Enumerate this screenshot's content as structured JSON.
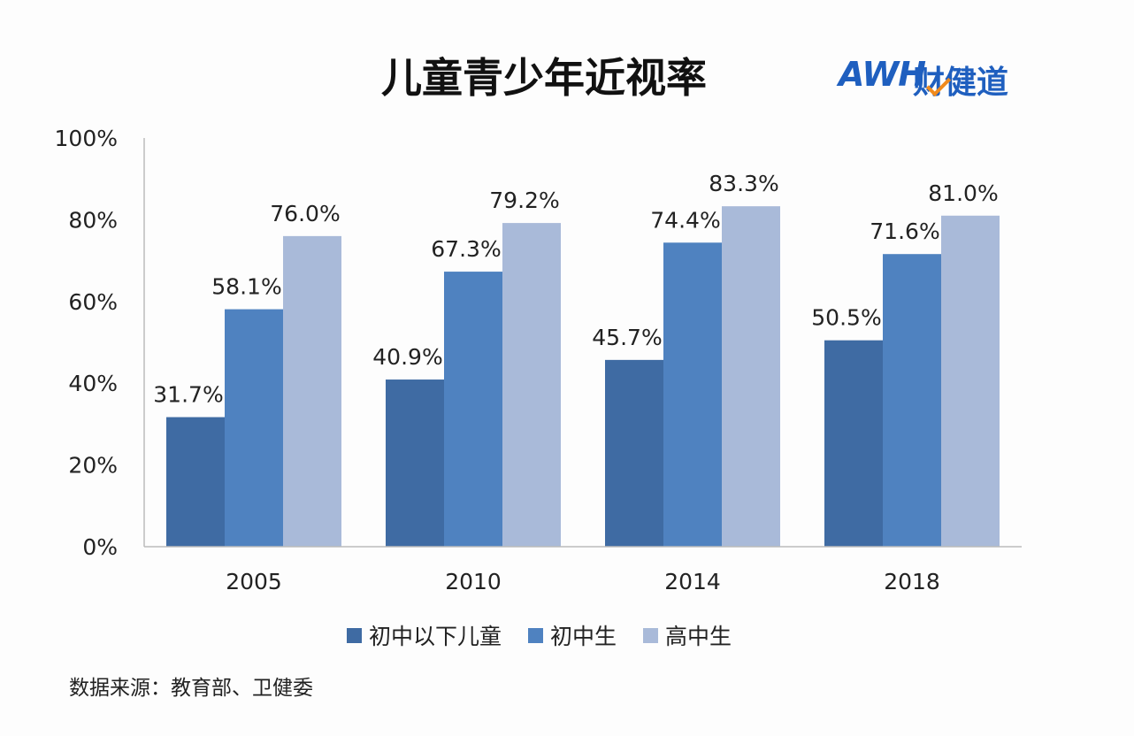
{
  "chart_data": {
    "type": "bar",
    "title": "儿童青少年近视率",
    "categories": [
      "2005",
      "2010",
      "2014",
      "2018"
    ],
    "series": [
      {
        "name": "初中以下儿童",
        "values": [
          31.7,
          40.9,
          45.7,
          50.5
        ],
        "color": "#3f6ba3"
      },
      {
        "name": "初中生",
        "values": [
          58.1,
          67.3,
          74.4,
          71.6
        ],
        "color": "#4f82c0"
      },
      {
        "name": "高中生",
        "values": [
          76.0,
          79.2,
          83.3,
          81.0
        ],
        "color": "#a9bad9"
      }
    ],
    "data_labels": [
      [
        "31.7%",
        "40.9%",
        "45.7%",
        "50.5%"
      ],
      [
        "58.1%",
        "67.3%",
        "74.4%",
        "71.6%"
      ],
      [
        "76.0%",
        "79.2%",
        "83.3%",
        "81.0%"
      ]
    ],
    "ylim": [
      0,
      100
    ],
    "yticks": [
      "0%",
      "20%",
      "40%",
      "60%",
      "80%",
      "100%"
    ],
    "grid": false,
    "legend_position": "bottom",
    "xlabel": "",
    "ylabel": ""
  },
  "logo": {
    "text": "AWH财健道"
  },
  "source": "数据来源：教育部、卫健委"
}
